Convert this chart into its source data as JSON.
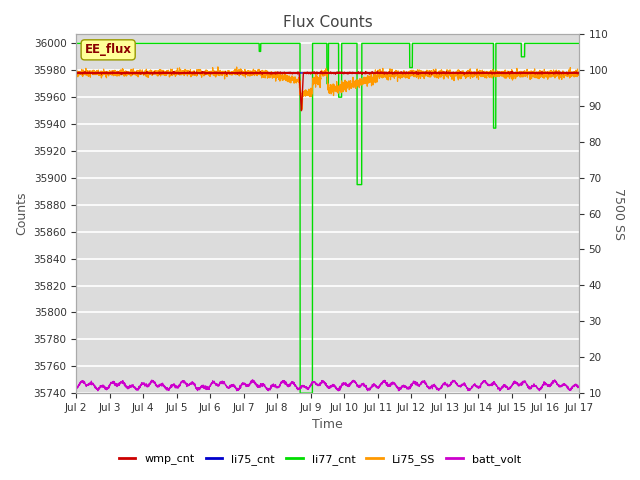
{
  "title": "Flux Counts",
  "xlabel": "Time",
  "ylabel_left": "Counts",
  "ylabel_right": "7500 SS",
  "ylim_left": [
    35740,
    36007
  ],
  "ylim_right": [
    10,
    110
  ],
  "bg_color": "#dcdcdc",
  "grid_color": "white",
  "annotation_text": "EE_flux",
  "annotation_box_color": "#ffff99",
  "annotation_border_color": "#999900",
  "x_ticks": [
    2,
    3,
    4,
    5,
    6,
    7,
    8,
    9,
    10,
    11,
    12,
    13,
    14,
    15,
    16,
    17
  ],
  "x_tick_labels": [
    "Jul 2",
    "Jul 3",
    "Jul 4",
    "Jul 5",
    "Jul 6",
    "Jul 7",
    "Jul 8",
    "Jul 9",
    "Jul 10",
    "Jul 11",
    "Jul 12",
    "Jul 13",
    "Jul 14",
    "Jul 15",
    "Jul 16",
    "Jul 17"
  ],
  "y_ticks_left": [
    35740,
    35760,
    35780,
    35800,
    35820,
    35840,
    35860,
    35880,
    35900,
    35920,
    35940,
    35960,
    35980,
    36000
  ],
  "y_ticks_right": [
    10,
    20,
    30,
    40,
    50,
    60,
    70,
    80,
    90,
    100,
    110
  ],
  "legend_entries": [
    {
      "label": "wmp_cnt",
      "color": "#cc0000"
    },
    {
      "label": "li75_cnt",
      "color": "#0000cc"
    },
    {
      "label": "li77_cnt",
      "color": "#00dd00"
    },
    {
      "label": "Li75_SS",
      "color": "#ff9900"
    },
    {
      "label": "batt_volt",
      "color": "#cc00cc"
    }
  ]
}
